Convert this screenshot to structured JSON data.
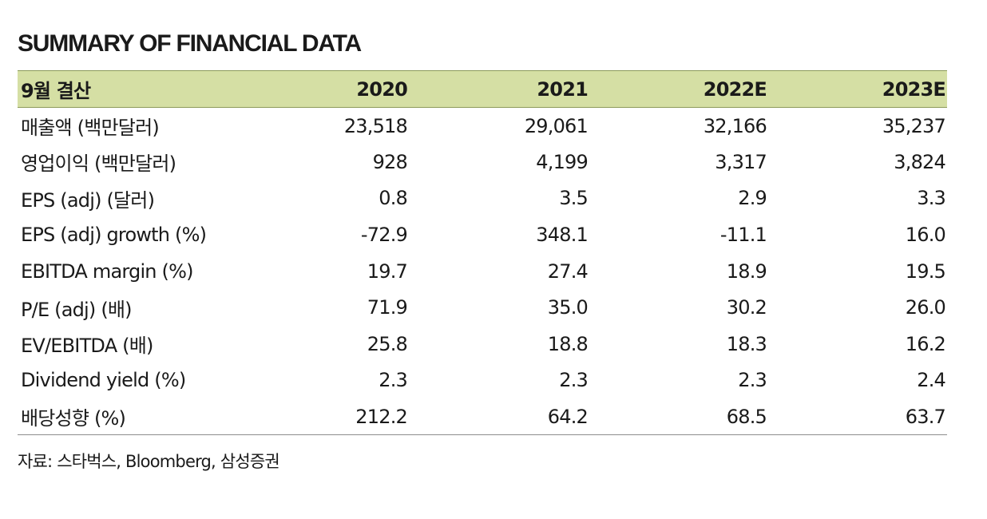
{
  "title": "SUMMARY OF FINANCIAL DATA",
  "table": {
    "header": [
      "9월 결산",
      "2020",
      "2021",
      "2022E",
      "2023E"
    ],
    "rows": [
      {
        "label": "매출액 (백만달러)",
        "values": [
          "23,518",
          "29,061",
          "32,166",
          "35,237"
        ]
      },
      {
        "label": "영업이익 (백만달러)",
        "values": [
          "928",
          "4,199",
          "3,317",
          "3,824"
        ]
      },
      {
        "label": "EPS (adj) (달러)",
        "values": [
          "0.8",
          "3.5",
          "2.9",
          "3.3"
        ]
      },
      {
        "label": "EPS (adj) growth (%)",
        "values": [
          "-72.9",
          "348.1",
          "-11.1",
          "16.0"
        ]
      },
      {
        "label": "EBITDA margin (%)",
        "values": [
          "19.7",
          "27.4",
          "18.9",
          "19.5"
        ]
      },
      {
        "label": "P/E (adj) (배)",
        "values": [
          "71.9",
          "35.0",
          "30.2",
          "26.0"
        ]
      },
      {
        "label": "EV/EBITDA (배)",
        "values": [
          "25.8",
          "18.8",
          "18.3",
          "16.2"
        ]
      },
      {
        "label": "Dividend yield (%)",
        "values": [
          "2.3",
          "2.3",
          "2.3",
          "2.4"
        ]
      },
      {
        "label": "배당성향 (%)",
        "values": [
          "212.2",
          "64.2",
          "68.5",
          "63.7"
        ]
      }
    ]
  },
  "source": "자료: 스타벅스, Bloomberg, 삼성증권",
  "colors": {
    "header_background": "#d5dfa4",
    "header_rule": "#8c9a5a",
    "bottom_rule": "#8c8c8c"
  }
}
